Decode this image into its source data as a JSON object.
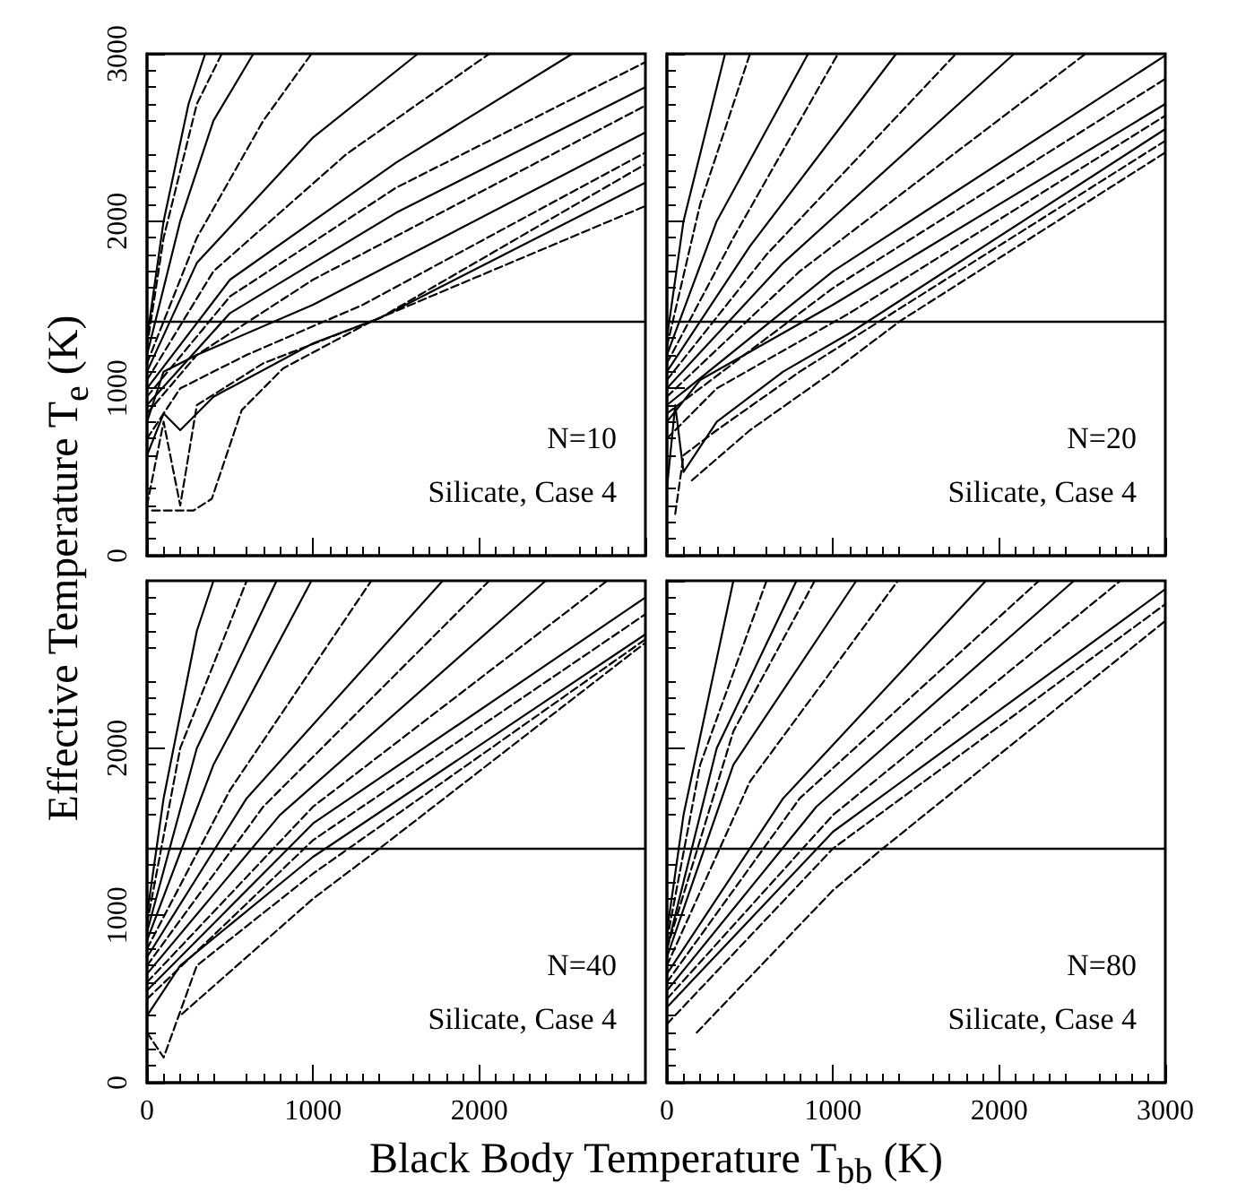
{
  "chart_data": [
    {
      "type": "line",
      "ylabel": "Effective Temperature T$_{e}$ (K)",
      "xlim": [
        0,
        3000
      ],
      "ylim": [
        0,
        3000
      ],
      "xticks": [
        {
          "value": 0,
          "label": null
        },
        {
          "value": 1000,
          "label": null
        },
        {
          "value": 2000,
          "label": null
        },
        {
          "value": 3000,
          "label": null
        }
      ],
      "yticks": [
        0,
        1000,
        2000,
        3000
      ],
      "tick_labels": "y",
      "grid": false,
      "marker": "none",
      "annotations": [
        "N=10",
        "Silicate, Case 4"
      ],
      "ref_lines": [
        {
          "axis": "y",
          "value": 1400,
          "label": null,
          "color": "#000000"
        }
      ],
      "series": [
        {
          "color": "#000000",
          "line_style": "solid",
          "x": [
            0,
            100,
            250,
            350
          ],
          "values": [
            1300,
            2000,
            2700,
            3000
          ]
        },
        {
          "color": "#000000",
          "line_style": "dashed",
          "x": [
            0,
            100,
            300,
            450
          ],
          "values": [
            1250,
            1900,
            2700,
            3000
          ]
        },
        {
          "color": "#000000",
          "line_style": "solid",
          "x": [
            0,
            200,
            400,
            640
          ],
          "values": [
            1200,
            2000,
            2600,
            3000
          ]
        },
        {
          "color": "#000000",
          "line_style": "dashed",
          "x": [
            0,
            300,
            700,
            990
          ],
          "values": [
            1150,
            1900,
            2600,
            3000
          ]
        },
        {
          "color": "#000000",
          "line_style": "solid",
          "x": [
            0,
            300,
            1000,
            1630
          ],
          "values": [
            1100,
            1750,
            2500,
            3000
          ]
        },
        {
          "color": "#000000",
          "line_style": "dashed",
          "x": [
            0,
            400,
            1200,
            2060
          ],
          "values": [
            1050,
            1700,
            2400,
            3000
          ]
        },
        {
          "color": "#000000",
          "line_style": "solid",
          "x": [
            0,
            500,
            1500,
            2560
          ],
          "values": [
            1000,
            1650,
            2350,
            3000
          ]
        },
        {
          "color": "#000000",
          "line_style": "dashed",
          "x": [
            0,
            500,
            1500,
            3000
          ],
          "values": [
            950,
            1550,
            2200,
            2950
          ]
        },
        {
          "color": "#000000",
          "line_style": "solid",
          "x": [
            0,
            500,
            1500,
            3000
          ],
          "values": [
            900,
            1450,
            2050,
            2800
          ]
        },
        {
          "color": "#000000",
          "line_style": "dashed",
          "x": [
            0,
            300,
            1000,
            3000
          ],
          "values": [
            850,
            1200,
            1650,
            2690
          ]
        },
        {
          "color": "#000000",
          "line_style": "solid",
          "x": [
            0,
            100,
            300,
            1000,
            3000
          ],
          "values": [
            800,
            1100,
            1200,
            1500,
            2530
          ]
        },
        {
          "color": "#000000",
          "line_style": "dashed",
          "x": [
            0,
            200,
            600,
            1300,
            3000
          ],
          "values": [
            700,
            1000,
            1200,
            1500,
            2410
          ]
        },
        {
          "color": "#000000",
          "line_style": "solid",
          "x": [
            0,
            100,
            200,
            400,
            1000,
            1400,
            3000
          ],
          "values": [
            600,
            850,
            750,
            950,
            1270,
            1420,
            2230
          ]
        },
        {
          "color": "#000000",
          "line_style": "dashed",
          "x": [
            0,
            100,
            200,
            300,
            700,
            1400,
            3000
          ],
          "values": [
            300,
            800,
            300,
            900,
            1150,
            1420,
            2340
          ]
        },
        {
          "color": "#000000",
          "line_style": "dashed",
          "x": [
            30,
            280,
            390,
            570,
            820,
            1350,
            3000
          ],
          "values": [
            270,
            270,
            340,
            870,
            1120,
            1400,
            2090
          ]
        }
      ]
    },
    {
      "type": "line",
      "xlim": [
        0,
        3000
      ],
      "ylim": [
        0,
        3000
      ],
      "xticks": [
        {
          "value": 0,
          "label": null
        },
        {
          "value": 1000,
          "label": null
        },
        {
          "value": 2000,
          "label": null
        },
        {
          "value": 3000,
          "label": null
        }
      ],
      "yticks": [
        {
          "value": 0,
          "label": null
        },
        {
          "value": 1000,
          "label": null
        },
        {
          "value": 2000,
          "label": null
        },
        {
          "value": 3000,
          "label": null
        }
      ],
      "tick_labels": false,
      "grid": false,
      "marker": "none",
      "annotations": [
        "N=20",
        "Silicate, Case 4"
      ],
      "ref_lines": [
        {
          "axis": "y",
          "value": 1400,
          "label": null,
          "color": "#000000"
        }
      ],
      "series": [
        {
          "color": "#000000",
          "line_style": "solid",
          "x": [
            0,
            100,
            300,
            350
          ],
          "values": [
            1300,
            2000,
            2800,
            3000
          ]
        },
        {
          "color": "#000000",
          "line_style": "dashed",
          "x": [
            0,
            200,
            500
          ],
          "values": [
            1250,
            2100,
            3000
          ]
        },
        {
          "color": "#000000",
          "line_style": "solid",
          "x": [
            0,
            300,
            850
          ],
          "values": [
            1200,
            2000,
            3000
          ]
        },
        {
          "color": "#000000",
          "line_style": "dashed",
          "x": [
            0,
            400,
            1030
          ],
          "values": [
            1150,
            1900,
            3000
          ]
        },
        {
          "color": "#000000",
          "line_style": "solid",
          "x": [
            0,
            500,
            1380
          ],
          "values": [
            1100,
            1850,
            3000
          ]
        },
        {
          "color": "#000000",
          "line_style": "dashed",
          "x": [
            0,
            600,
            1740
          ],
          "values": [
            1050,
            1800,
            3000
          ]
        },
        {
          "color": "#000000",
          "line_style": "solid",
          "x": [
            0,
            700,
            2090
          ],
          "values": [
            1000,
            1750,
            3000
          ]
        },
        {
          "color": "#000000",
          "line_style": "dashed",
          "x": [
            0,
            800,
            2520
          ],
          "values": [
            950,
            1700,
            3000
          ]
        },
        {
          "color": "#000000",
          "line_style": "solid",
          "x": [
            0,
            1000,
            3000
          ],
          "values": [
            900,
            1700,
            2990
          ]
        },
        {
          "color": "#000000",
          "line_style": "dashed",
          "x": [
            0,
            1000,
            3000
          ],
          "values": [
            850,
            1600,
            2850
          ]
        },
        {
          "color": "#000000",
          "line_style": "solid",
          "x": [
            0,
            200,
            1000,
            3000
          ],
          "values": [
            800,
            1050,
            1500,
            2700
          ]
        },
        {
          "color": "#000000",
          "line_style": "dashed",
          "x": [
            0,
            300,
            1100,
            3000
          ],
          "values": [
            700,
            1000,
            1450,
            2630
          ]
        },
        {
          "color": "#000000",
          "line_style": "solid",
          "x": [
            0,
            50,
            100,
            300,
            700,
            1100,
            3000
          ],
          "values": [
            400,
            900,
            500,
            800,
            1100,
            1330,
            2550
          ]
        },
        {
          "color": "#000000",
          "line_style": "dashed",
          "x": [
            50,
            100,
            300,
            800,
            3000
          ],
          "values": [
            250,
            600,
            750,
            1100,
            2480
          ]
        },
        {
          "color": "#000000",
          "line_style": "dashed",
          "x": [
            150,
            500,
            1000,
            1400,
            3000
          ],
          "values": [
            450,
            750,
            1100,
            1400,
            2410
          ]
        }
      ]
    },
    {
      "type": "line",
      "xlim": [
        0,
        3000
      ],
      "ylim": [
        0,
        3000
      ],
      "xticks": [
        0,
        1000,
        2000
      ],
      "yticks": [
        0,
        1000,
        2000
      ],
      "grid": false,
      "marker": "none",
      "annotations": [
        "N=40",
        "Silicate, Case 4"
      ],
      "ref_lines": [
        {
          "axis": "y",
          "value": 1400,
          "label": null,
          "color": "#000000"
        }
      ],
      "series": [
        {
          "color": "#000000",
          "line_style": "solid",
          "x": [
            0,
            100,
            300,
            400
          ],
          "values": [
            1000,
            1700,
            2700,
            3000
          ]
        },
        {
          "color": "#000000",
          "line_style": "dashed",
          "x": [
            0,
            200,
            600
          ],
          "values": [
            950,
            2000,
            3000
          ]
        },
        {
          "color": "#000000",
          "line_style": "solid",
          "x": [
            0,
            300,
            780
          ],
          "values": [
            900,
            2000,
            3000
          ]
        },
        {
          "color": "#000000",
          "line_style": "solid",
          "x": [
            0,
            400,
            990
          ],
          "values": [
            850,
            1900,
            3000
          ]
        },
        {
          "color": "#000000",
          "line_style": "dashed",
          "x": [
            0,
            500,
            1350
          ],
          "values": [
            800,
            1750,
            3000
          ]
        },
        {
          "color": "#000000",
          "line_style": "solid",
          "x": [
            0,
            600,
            1780
          ],
          "values": [
            750,
            1700,
            3000
          ]
        },
        {
          "color": "#000000",
          "line_style": "dashed",
          "x": [
            0,
            700,
            2060
          ],
          "values": [
            700,
            1650,
            3000
          ]
        },
        {
          "color": "#000000",
          "line_style": "solid",
          "x": [
            0,
            800,
            2400
          ],
          "values": [
            650,
            1600,
            3000
          ]
        },
        {
          "color": "#000000",
          "line_style": "dashed",
          "x": [
            0,
            1000,
            2770
          ],
          "values": [
            600,
            1650,
            3000
          ]
        },
        {
          "color": "#000000",
          "line_style": "solid",
          "x": [
            0,
            1000,
            3000
          ],
          "values": [
            550,
            1550,
            2900
          ]
        },
        {
          "color": "#000000",
          "line_style": "dashed",
          "x": [
            0,
            1000,
            3000
          ],
          "values": [
            500,
            1450,
            2800
          ]
        },
        {
          "color": "#000000",
          "line_style": "solid",
          "x": [
            0,
            200,
            1000,
            3000
          ],
          "values": [
            400,
            700,
            1350,
            2680
          ]
        },
        {
          "color": "#000000",
          "line_style": "dashed",
          "x": [
            0,
            100,
            300,
            1000,
            3000
          ],
          "values": [
            300,
            150,
            700,
            1250,
            2650
          ]
        },
        {
          "color": "#000000",
          "line_style": "dashed",
          "x": [
            210,
            1000,
            1400,
            3000
          ],
          "values": [
            410,
            1100,
            1400,
            2630
          ]
        }
      ]
    },
    {
      "type": "line",
      "xlabel": "Black Body Temperature T$_{bb}$ (K)",
      "xlim": [
        0,
        3000
      ],
      "ylim": [
        0,
        3000
      ],
      "xticks": [
        0,
        1000,
        2000,
        3000
      ],
      "yticks": [
        {
          "value": 0,
          "label": null
        },
        {
          "value": 1000,
          "label": null
        },
        {
          "value": 2000,
          "label": null
        },
        {
          "value": 3000,
          "label": null
        }
      ],
      "tick_labels": "x",
      "grid": false,
      "marker": "none",
      "annotations": [
        "N=80",
        "Silicate, Case 4"
      ],
      "ref_lines": [
        {
          "axis": "y",
          "value": 1400,
          "label": null,
          "color": "#000000"
        }
      ],
      "series": [
        {
          "color": "#000000",
          "line_style": "solid",
          "x": [
            0,
            100,
            400
          ],
          "values": [
            900,
            1600,
            3000
          ]
        },
        {
          "color": "#000000",
          "line_style": "dashed",
          "x": [
            0,
            200,
            600
          ],
          "values": [
            850,
            1900,
            3000
          ]
        },
        {
          "color": "#000000",
          "line_style": "solid",
          "x": [
            0,
            300,
            780
          ],
          "values": [
            800,
            2000,
            3000
          ]
        },
        {
          "color": "#000000",
          "line_style": "dashed",
          "x": [
            0,
            400,
            890
          ],
          "values": [
            800,
            2100,
            3000
          ]
        },
        {
          "color": "#000000",
          "line_style": "solid",
          "x": [
            0,
            400,
            1140
          ],
          "values": [
            750,
            1900,
            3000
          ]
        },
        {
          "color": "#000000",
          "line_style": "dashed",
          "x": [
            0,
            500,
            1390
          ],
          "values": [
            700,
            1800,
            3000
          ]
        },
        {
          "color": "#000000",
          "line_style": "solid",
          "x": [
            0,
            700,
            1920
          ],
          "values": [
            650,
            1700,
            3000
          ]
        },
        {
          "color": "#000000",
          "line_style": "dashed",
          "x": [
            0,
            800,
            2240
          ],
          "values": [
            600,
            1700,
            3000
          ]
        },
        {
          "color": "#000000",
          "line_style": "solid",
          "x": [
            0,
            900,
            2450
          ],
          "values": [
            550,
            1650,
            3000
          ]
        },
        {
          "color": "#000000",
          "line_style": "dashed",
          "x": [
            0,
            1000,
            2730
          ],
          "values": [
            500,
            1600,
            3000
          ]
        },
        {
          "color": "#000000",
          "line_style": "solid",
          "x": [
            0,
            1000,
            3000
          ],
          "values": [
            450,
            1500,
            2950
          ]
        },
        {
          "color": "#000000",
          "line_style": "dashed",
          "x": [
            0,
            1000,
            3000
          ],
          "values": [
            350,
            1400,
            2860
          ]
        },
        {
          "color": "#000000",
          "line_style": "dashed",
          "x": [
            180,
            1000,
            1300,
            3000
          ],
          "values": [
            300,
            1150,
            1400,
            2760
          ]
        }
      ]
    }
  ]
}
